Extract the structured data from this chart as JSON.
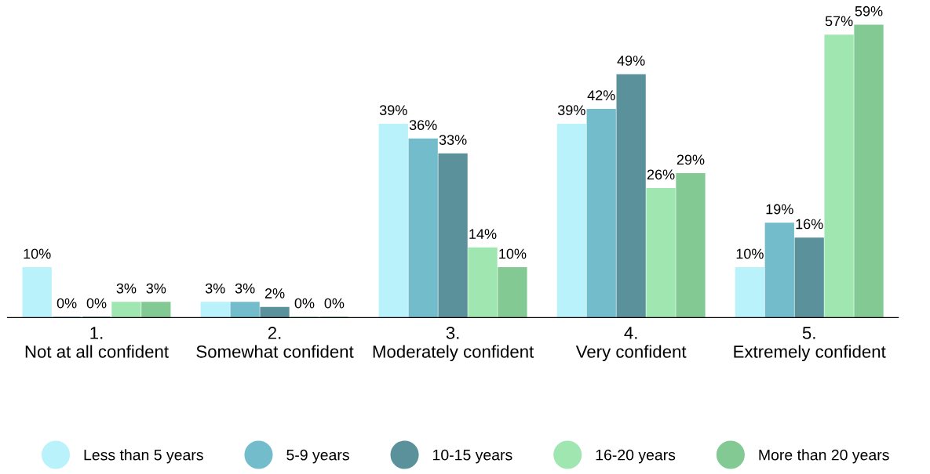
{
  "chart_data": {
    "type": "bar",
    "categories": [
      "1.\nNot at all confident",
      "2.\nSomewhat confident",
      "3.\nModerately confident",
      "4.\nVery confident",
      "5.\nExtremely confident"
    ],
    "series": [
      {
        "name": "Less than 5 years",
        "color": "#b9f2fb",
        "values": [
          10,
          3,
          39,
          39,
          10
        ],
        "value_labels": [
          "10%",
          "3%",
          "39%",
          "39%",
          "10%"
        ]
      },
      {
        "name": "5-9 years",
        "color": "#72bccb",
        "values": [
          0,
          3,
          36,
          42,
          19
        ],
        "value_labels": [
          "0%",
          "3%",
          "36%",
          "42%",
          "19%"
        ]
      },
      {
        "name": "10-15 years",
        "color": "#5a919b",
        "values": [
          0,
          2,
          33,
          49,
          16
        ],
        "value_labels": [
          "0%",
          "2%",
          "33%",
          "49%",
          "16%"
        ]
      },
      {
        "name": "16-20 years",
        "color": "#a0e6b0",
        "values": [
          3,
          0,
          14,
          26,
          57
        ],
        "value_labels": [
          "3%",
          "0%",
          "14%",
          "26%",
          "57%"
        ]
      },
      {
        "name": "More than 20 years",
        "color": "#82c993",
        "values": [
          3,
          0,
          10,
          29,
          59
        ],
        "value_labels": [
          "3%",
          "0%",
          "10%",
          "29%",
          "59%"
        ]
      }
    ],
    "legend": "bottom",
    "tick_labels": "x"
  }
}
